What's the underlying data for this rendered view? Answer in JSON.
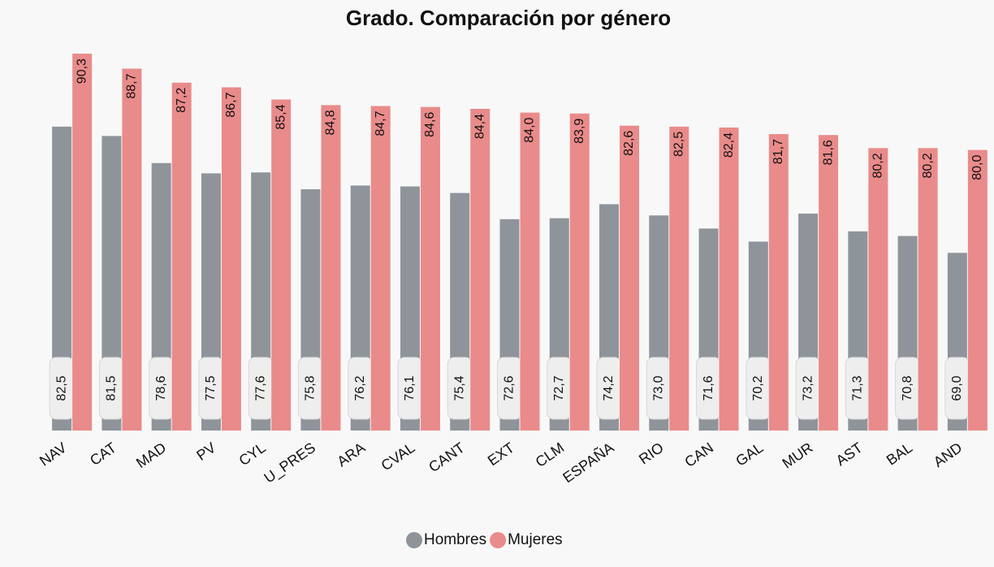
{
  "chart_data": {
    "type": "bar",
    "title": "Grado. Comparación por género",
    "categories": [
      "NAV",
      "CAT",
      "MAD",
      "PV",
      "CYL",
      "U_PRES",
      "ARA",
      "CVAL",
      "CANT",
      "EXT",
      "CLM",
      "ESPAÑA",
      "RIO",
      "CAN",
      "GAL",
      "MUR",
      "AST",
      "BAL",
      "AND"
    ],
    "series": [
      {
        "name": "Hombres",
        "color": "#8f949b",
        "values": [
          82.5,
          81.5,
          78.6,
          77.5,
          77.6,
          75.8,
          76.2,
          76.1,
          75.4,
          72.6,
          72.7,
          74.2,
          73.0,
          71.6,
          70.2,
          73.2,
          71.3,
          70.8,
          69.0
        ],
        "value_labels": [
          "82,5",
          "81,5",
          "78,6",
          "77,5",
          "77,6",
          "75,8",
          "76,2",
          "76,1",
          "75,4",
          "72,6",
          "72,7",
          "74,2",
          "73,0",
          "71,6",
          "70,2",
          "73,2",
          "71,3",
          "70,8",
          "69,0"
        ]
      },
      {
        "name": "Mujeres",
        "color": "#e98b8a",
        "values": [
          90.3,
          88.7,
          87.2,
          86.7,
          85.4,
          84.8,
          84.7,
          84.6,
          84.4,
          84.0,
          83.9,
          82.6,
          82.5,
          82.4,
          81.7,
          81.6,
          80.2,
          80.2,
          80.0
        ],
        "value_labels": [
          "90,3",
          "88,7",
          "87,2",
          "86,7",
          "85,4",
          "84,8",
          "84,7",
          "84,6",
          "84,4",
          "84,0",
          "83,9",
          "82,6",
          "82,5",
          "82,4",
          "81,7",
          "81,6",
          "80,2",
          "80,2",
          "80,0"
        ]
      }
    ],
    "ylim": [
      50,
      91
    ],
    "legend": "bottom"
  }
}
